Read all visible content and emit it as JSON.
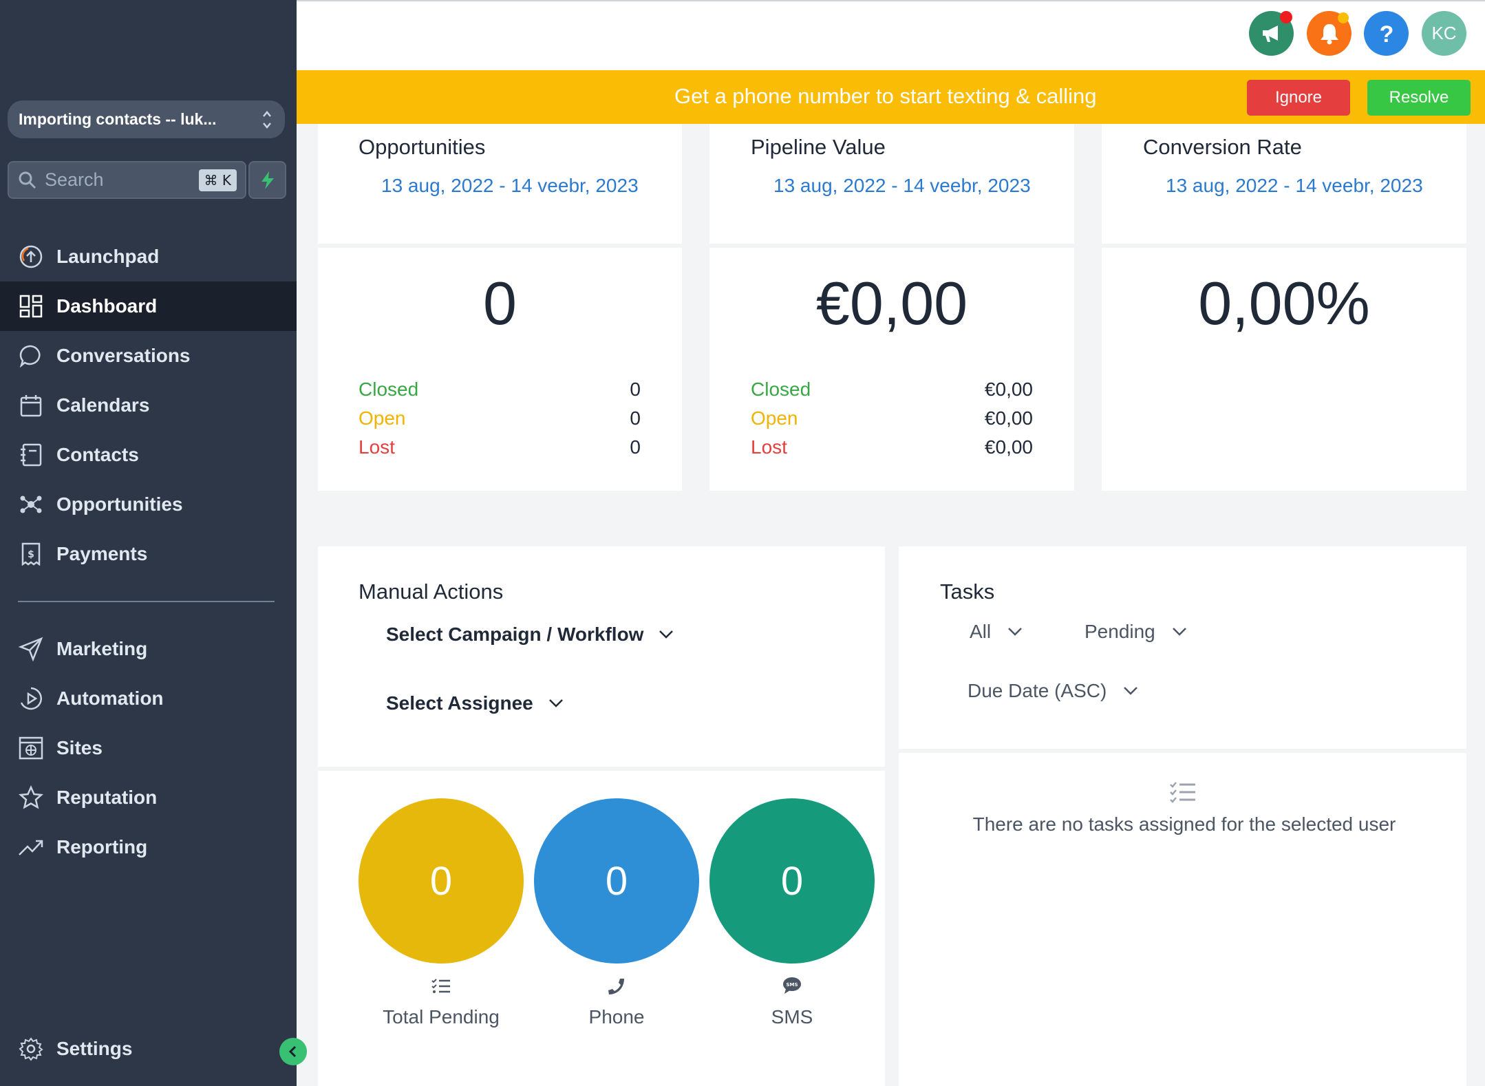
{
  "sidebar": {
    "location_switcher": "Importing contacts -- luk...",
    "search_placeholder": "Search",
    "search_shortcut": "⌘ K",
    "nav_primary": [
      {
        "label": "Launchpad",
        "icon": "launchpad-icon"
      },
      {
        "label": "Dashboard",
        "icon": "dashboard-icon",
        "active": true
      },
      {
        "label": "Conversations",
        "icon": "chat-icon"
      },
      {
        "label": "Calendars",
        "icon": "calendar-icon"
      },
      {
        "label": "Contacts",
        "icon": "contacts-icon"
      },
      {
        "label": "Opportunities",
        "icon": "opportunities-icon"
      },
      {
        "label": "Payments",
        "icon": "payments-icon"
      }
    ],
    "nav_secondary": [
      {
        "label": "Marketing",
        "icon": "send-icon"
      },
      {
        "label": "Automation",
        "icon": "play-icon"
      },
      {
        "label": "Sites",
        "icon": "globe-icon"
      },
      {
        "label": "Reputation",
        "icon": "star-icon"
      },
      {
        "label": "Reporting",
        "icon": "trend-icon"
      }
    ],
    "settings": "Settings"
  },
  "header": {
    "avatar_initials": "KC",
    "colors": {
      "announce": "#2f8f6b",
      "notify": "#f97316",
      "help": "#2b87e3",
      "avatar": "#6fbfa8"
    }
  },
  "banner": {
    "text": "Get a phone number to start texting & calling",
    "ignore": "Ignore",
    "resolve": "Resolve"
  },
  "opportunities": {
    "title": "Opportunities",
    "date_range": "13 aug, 2022 - 14 veebr, 2023",
    "value": "0",
    "closed_label": "Closed",
    "closed_value": "0",
    "open_label": "Open",
    "open_value": "0",
    "lost_label": "Lost",
    "lost_value": "0"
  },
  "pipeline": {
    "title": "Pipeline Value",
    "date_range": "13 aug, 2022 - 14 veebr, 2023",
    "value": "€0,00",
    "closed_label": "Closed",
    "closed_value": "€0,00",
    "open_label": "Open",
    "open_value": "€0,00",
    "lost_label": "Lost",
    "lost_value": "€0,00"
  },
  "conversion": {
    "title": "Conversion Rate",
    "date_range": "13 aug, 2022 - 14 veebr, 2023",
    "value": "0,00%"
  },
  "manual_actions": {
    "title": "Manual Actions",
    "campaign_select": "Select Campaign / Workflow",
    "assignee_select": "Select Assignee",
    "stats": [
      {
        "value": "0",
        "label": "Total Pending",
        "color": "#e6b80c"
      },
      {
        "value": "0",
        "label": "Phone",
        "color": "#2f8fd6"
      },
      {
        "value": "0",
        "label": "SMS",
        "color": "#169a7c"
      }
    ]
  },
  "tasks": {
    "title": "Tasks",
    "filter_all": "All",
    "filter_status": "Pending",
    "sort": "Due Date (ASC)",
    "empty": "There are no tasks assigned for the selected user"
  }
}
